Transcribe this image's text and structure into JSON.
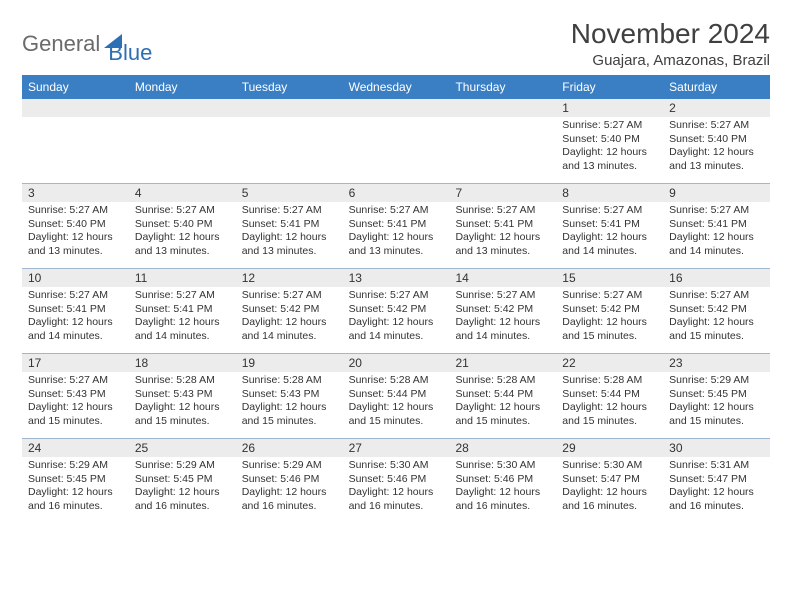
{
  "logo": {
    "part1": "General",
    "part2": "Blue"
  },
  "title": "November 2024",
  "location": "Guajara, Amazonas, Brazil",
  "dayNames": [
    "Sunday",
    "Monday",
    "Tuesday",
    "Wednesday",
    "Thursday",
    "Friday",
    "Saturday"
  ],
  "colors": {
    "headerBar": "#3a7fc4",
    "dateStrip": "#ececec",
    "weekDivider": "#9fb8d0",
    "logoGray": "#6b6b6b",
    "logoBlue": "#2d6fb5",
    "text": "#333333",
    "background": "#ffffff"
  },
  "layout": {
    "columns": 7,
    "firstDayOffset": 5,
    "daysInMonth": 30,
    "cellFontSizePx": 10.5,
    "dayHeaderFontSizePx": 12,
    "titleFontSizePx": 28,
    "locationFontSizePx": 15
  },
  "days": [
    {
      "n": 1,
      "sunrise": "5:27 AM",
      "sunset": "5:40 PM",
      "daylight": "12 hours and 13 minutes."
    },
    {
      "n": 2,
      "sunrise": "5:27 AM",
      "sunset": "5:40 PM",
      "daylight": "12 hours and 13 minutes."
    },
    {
      "n": 3,
      "sunrise": "5:27 AM",
      "sunset": "5:40 PM",
      "daylight": "12 hours and 13 minutes."
    },
    {
      "n": 4,
      "sunrise": "5:27 AM",
      "sunset": "5:40 PM",
      "daylight": "12 hours and 13 minutes."
    },
    {
      "n": 5,
      "sunrise": "5:27 AM",
      "sunset": "5:41 PM",
      "daylight": "12 hours and 13 minutes."
    },
    {
      "n": 6,
      "sunrise": "5:27 AM",
      "sunset": "5:41 PM",
      "daylight": "12 hours and 13 minutes."
    },
    {
      "n": 7,
      "sunrise": "5:27 AM",
      "sunset": "5:41 PM",
      "daylight": "12 hours and 13 minutes."
    },
    {
      "n": 8,
      "sunrise": "5:27 AM",
      "sunset": "5:41 PM",
      "daylight": "12 hours and 14 minutes."
    },
    {
      "n": 9,
      "sunrise": "5:27 AM",
      "sunset": "5:41 PM",
      "daylight": "12 hours and 14 minutes."
    },
    {
      "n": 10,
      "sunrise": "5:27 AM",
      "sunset": "5:41 PM",
      "daylight": "12 hours and 14 minutes."
    },
    {
      "n": 11,
      "sunrise": "5:27 AM",
      "sunset": "5:41 PM",
      "daylight": "12 hours and 14 minutes."
    },
    {
      "n": 12,
      "sunrise": "5:27 AM",
      "sunset": "5:42 PM",
      "daylight": "12 hours and 14 minutes."
    },
    {
      "n": 13,
      "sunrise": "5:27 AM",
      "sunset": "5:42 PM",
      "daylight": "12 hours and 14 minutes."
    },
    {
      "n": 14,
      "sunrise": "5:27 AM",
      "sunset": "5:42 PM",
      "daylight": "12 hours and 14 minutes."
    },
    {
      "n": 15,
      "sunrise": "5:27 AM",
      "sunset": "5:42 PM",
      "daylight": "12 hours and 15 minutes."
    },
    {
      "n": 16,
      "sunrise": "5:27 AM",
      "sunset": "5:42 PM",
      "daylight": "12 hours and 15 minutes."
    },
    {
      "n": 17,
      "sunrise": "5:27 AM",
      "sunset": "5:43 PM",
      "daylight": "12 hours and 15 minutes."
    },
    {
      "n": 18,
      "sunrise": "5:28 AM",
      "sunset": "5:43 PM",
      "daylight": "12 hours and 15 minutes."
    },
    {
      "n": 19,
      "sunrise": "5:28 AM",
      "sunset": "5:43 PM",
      "daylight": "12 hours and 15 minutes."
    },
    {
      "n": 20,
      "sunrise": "5:28 AM",
      "sunset": "5:44 PM",
      "daylight": "12 hours and 15 minutes."
    },
    {
      "n": 21,
      "sunrise": "5:28 AM",
      "sunset": "5:44 PM",
      "daylight": "12 hours and 15 minutes."
    },
    {
      "n": 22,
      "sunrise": "5:28 AM",
      "sunset": "5:44 PM",
      "daylight": "12 hours and 15 minutes."
    },
    {
      "n": 23,
      "sunrise": "5:29 AM",
      "sunset": "5:45 PM",
      "daylight": "12 hours and 15 minutes."
    },
    {
      "n": 24,
      "sunrise": "5:29 AM",
      "sunset": "5:45 PM",
      "daylight": "12 hours and 16 minutes."
    },
    {
      "n": 25,
      "sunrise": "5:29 AM",
      "sunset": "5:45 PM",
      "daylight": "12 hours and 16 minutes."
    },
    {
      "n": 26,
      "sunrise": "5:29 AM",
      "sunset": "5:46 PM",
      "daylight": "12 hours and 16 minutes."
    },
    {
      "n": 27,
      "sunrise": "5:30 AM",
      "sunset": "5:46 PM",
      "daylight": "12 hours and 16 minutes."
    },
    {
      "n": 28,
      "sunrise": "5:30 AM",
      "sunset": "5:46 PM",
      "daylight": "12 hours and 16 minutes."
    },
    {
      "n": 29,
      "sunrise": "5:30 AM",
      "sunset": "5:47 PM",
      "daylight": "12 hours and 16 minutes."
    },
    {
      "n": 30,
      "sunrise": "5:31 AM",
      "sunset": "5:47 PM",
      "daylight": "12 hours and 16 minutes."
    }
  ],
  "labels": {
    "sunrise": "Sunrise:",
    "sunset": "Sunset:",
    "daylight": "Daylight:"
  }
}
